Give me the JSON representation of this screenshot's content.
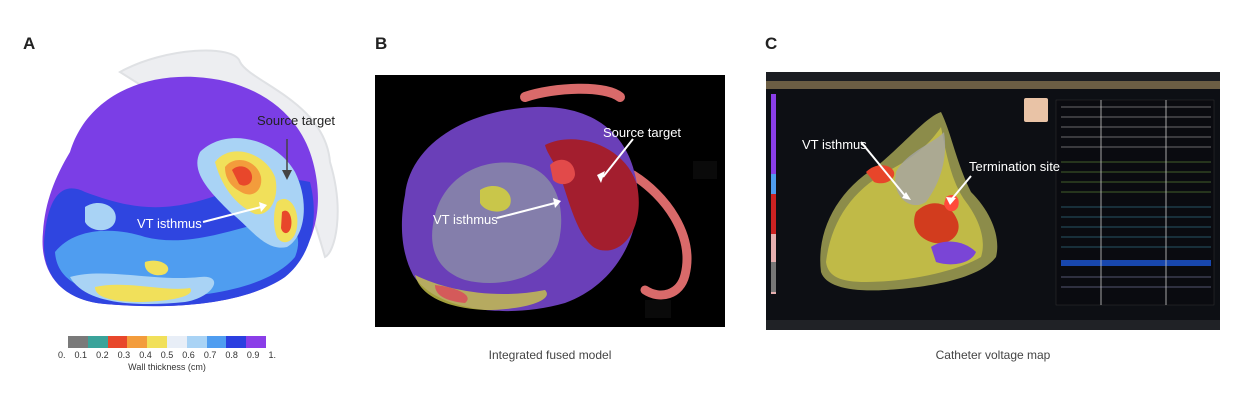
{
  "panels": [
    {
      "letter": "A",
      "annotations": [
        "Source target",
        "VT isthmus"
      ]
    },
    {
      "letter": "B",
      "annotations": [
        "Source target",
        "VT isthmus"
      ],
      "caption": "Integrated fused model"
    },
    {
      "letter": "C",
      "annotations": [
        "VT isthmus",
        "Termination site"
      ],
      "caption": "Catheter voltage map"
    }
  ],
  "colorbar": {
    "label": "Wall thickness (cm)",
    "ticks": [
      "0.",
      "0.1",
      "0.2",
      "0.3",
      "0.4",
      "0.5",
      "0.6",
      "0.7",
      "0.8",
      "0.9",
      "1."
    ],
    "colors": [
      "#7a7a7a",
      "#3aa39a",
      "#e8472b",
      "#f39c3c",
      "#f1e05a",
      "#e8eef7",
      "#a9d3f5",
      "#4f9df0",
      "#2b3fe0",
      "#8a3ee8"
    ]
  }
}
